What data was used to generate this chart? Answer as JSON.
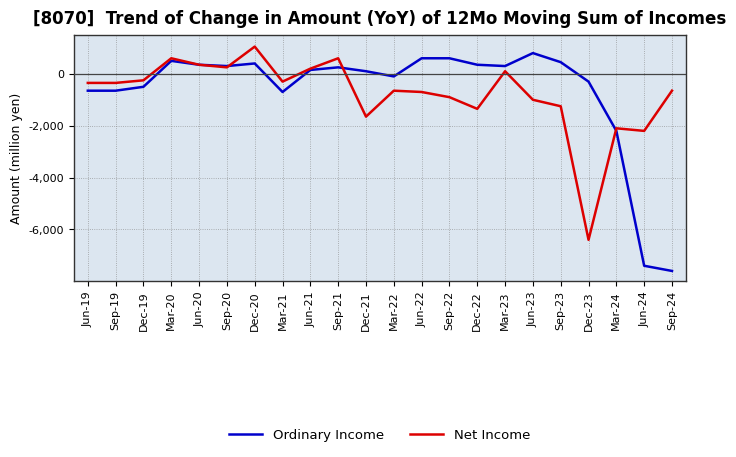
{
  "title": "[8070]  Trend of Change in Amount (YoY) of 12Mo Moving Sum of Incomes",
  "ylabel": "Amount (million yen)",
  "background_color": "#ffffff",
  "plot_bg_color": "#dce6f0",
  "grid_color": "#888888",
  "ordinary_income_color": "#0000cc",
  "net_income_color": "#dd0000",
  "x_labels": [
    "Jun-19",
    "Sep-19",
    "Dec-19",
    "Mar-20",
    "Jun-20",
    "Sep-20",
    "Dec-20",
    "Mar-21",
    "Jun-21",
    "Sep-21",
    "Dec-21",
    "Mar-22",
    "Jun-22",
    "Sep-22",
    "Dec-22",
    "Mar-23",
    "Jun-23",
    "Sep-23",
    "Dec-23",
    "Mar-24",
    "Jun-24",
    "Sep-24"
  ],
  "ordinary_income": [
    -650,
    -650,
    -500,
    500,
    350,
    300,
    400,
    -700,
    150,
    250,
    100,
    -100,
    600,
    600,
    350,
    300,
    800,
    450,
    -300,
    -2200,
    -7400,
    -7600
  ],
  "net_income": [
    -350,
    -350,
    -250,
    600,
    350,
    250,
    1050,
    -300,
    200,
    600,
    -1650,
    -650,
    -700,
    -900,
    -1350,
    100,
    -1000,
    -1250,
    -6400,
    -2100,
    -2200,
    -650
  ],
  "ylim": [
    -8000,
    1500
  ],
  "yticks": [
    0,
    -2000,
    -4000,
    -6000
  ],
  "line_width": 1.8,
  "title_fontsize": 12,
  "axis_fontsize": 9,
  "tick_fontsize": 8
}
